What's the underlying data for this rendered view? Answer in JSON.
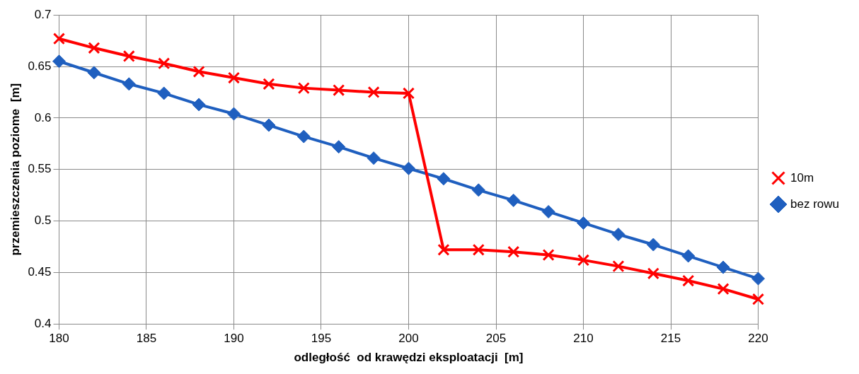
{
  "chart_data": {
    "type": "line",
    "xlabel": "odległość  od krawędzi eksploatacji  [m]",
    "ylabel": "przemieszczenia poziome  [m]",
    "x": [
      180,
      182,
      184,
      186,
      188,
      190,
      192,
      194,
      196,
      198,
      200,
      202,
      204,
      206,
      208,
      210,
      212,
      214,
      216,
      218,
      220
    ],
    "series": [
      {
        "name": "10m",
        "color": "#ff0000",
        "marker": "cross",
        "values": [
          0.677,
          0.668,
          0.66,
          0.653,
          0.645,
          0.639,
          0.633,
          0.629,
          0.627,
          0.625,
          0.624,
          0.472,
          0.472,
          0.47,
          0.467,
          0.462,
          0.456,
          0.449,
          0.442,
          0.434,
          0.424
        ]
      },
      {
        "name": "bez rowu",
        "color": "#1f5fbf",
        "marker": "diamond",
        "values": [
          0.655,
          0.644,
          0.633,
          0.624,
          0.613,
          0.604,
          0.593,
          0.582,
          0.572,
          0.561,
          0.551,
          0.541,
          0.53,
          0.52,
          0.509,
          0.498,
          0.487,
          0.477,
          0.466,
          0.455,
          0.444
        ]
      }
    ],
    "xlim": [
      180,
      220
    ],
    "xticks": [
      180,
      185,
      190,
      195,
      200,
      205,
      210,
      215,
      220
    ],
    "ylim": [
      0.4,
      0.7
    ],
    "yticks": [
      0.4,
      0.45,
      0.5,
      0.55,
      0.6,
      0.65,
      0.7
    ],
    "grid": true,
    "legend": "right",
    "line_style": "solid"
  }
}
